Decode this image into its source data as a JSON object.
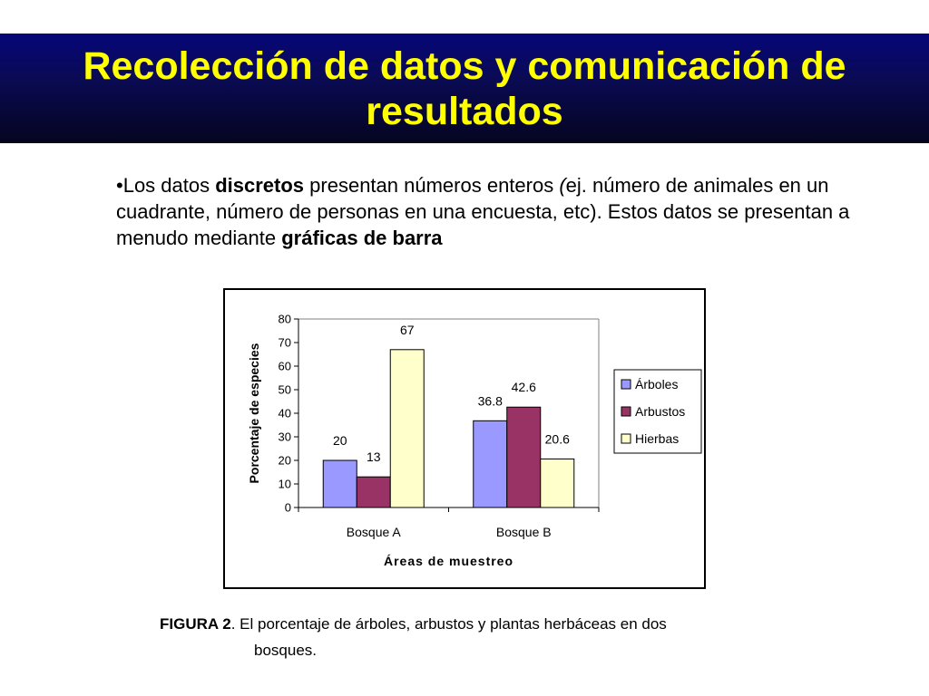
{
  "slide": {
    "title": "Recolección de datos y comunicación de resultados",
    "bullet": {
      "marker": "•",
      "t1": "Los datos ",
      "b1": "discretos",
      "t2": " presentan números enteros ",
      "t3": "(",
      "t4": "ej. número de animales en un cuadrante, número de personas en una encuesta, etc). Estos datos se presentan a menudo mediante ",
      "b2": "gráficas de barra"
    },
    "caption": {
      "label": "FIGURA 2",
      "text1": ". El porcentaje de árboles, arbustos y plantas herbáceas en dos",
      "text2": "bosques."
    }
  },
  "chart_data": {
    "type": "bar",
    "categories": [
      "Bosque A",
      "Bosque B"
    ],
    "series": [
      {
        "name": "Árboles",
        "values": [
          20,
          36.8
        ],
        "color": "#9999ff"
      },
      {
        "name": "Arbustos",
        "values": [
          13,
          42.6
        ],
        "color": "#993366"
      },
      {
        "name": "Hierbas",
        "values": [
          67,
          20.6
        ],
        "color": "#ffffcc"
      }
    ],
    "data_labels": [
      [
        "20",
        "36.8"
      ],
      [
        "13",
        "42.6"
      ],
      [
        "67",
        "20.6"
      ]
    ],
    "xlabel": "Áreas de muestreo",
    "ylabel": "Porcentaje de especies",
    "ylim": [
      0,
      80
    ],
    "yticks": [
      "0",
      "10",
      "20",
      "30",
      "40",
      "50",
      "60",
      "70",
      "80"
    ],
    "grid": false,
    "legend": "right"
  }
}
